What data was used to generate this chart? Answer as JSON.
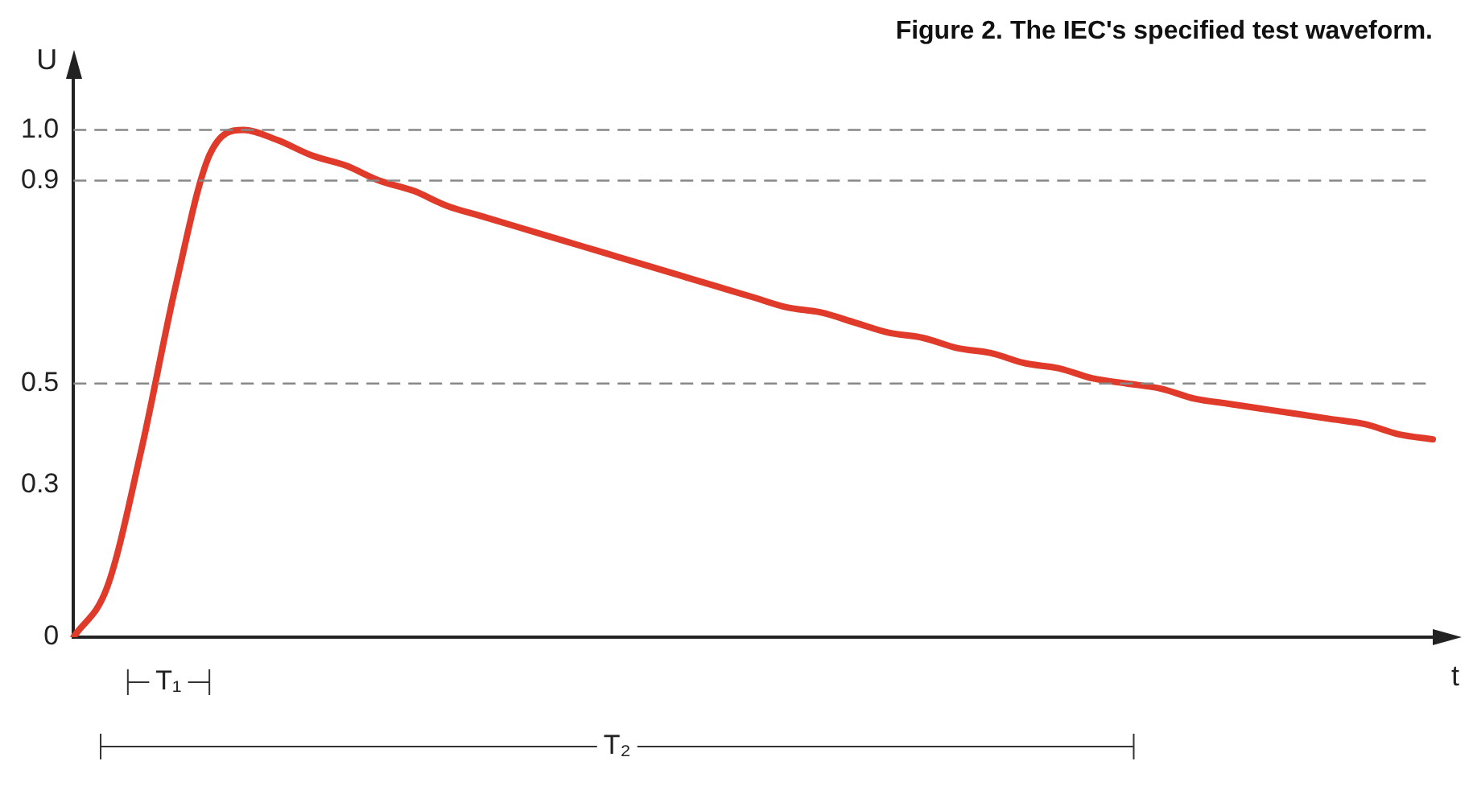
{
  "chart_data": {
    "type": "line",
    "title": "Figure 2. The IEC's specified test waveform.",
    "xlabel": "t",
    "ylabel": "U",
    "categories": [
      null,
      null,
      null,
      null,
      null,
      null,
      null,
      null,
      null,
      null,
      null,
      null,
      null,
      null,
      null,
      null,
      null,
      null,
      null,
      null,
      null,
      null,
      null,
      null,
      null,
      null,
      null,
      null,
      null,
      null,
      null,
      null,
      null,
      null,
      null,
      null,
      null,
      null,
      null,
      null,
      null
    ],
    "series": [
      {
        "color": "#e03a2a",
        "values": [
          0,
          0.1,
          0.37,
          0.69,
          0.95,
          1.0,
          0.98,
          0.95,
          0.93,
          0.9,
          0.88,
          0.85,
          0.83,
          0.81,
          0.79,
          0.77,
          0.75,
          0.73,
          0.71,
          0.69,
          0.67,
          0.65,
          0.64,
          0.62,
          0.6,
          0.59,
          0.57,
          0.56,
          0.54,
          0.53,
          0.51,
          0.5,
          0.49,
          0.47,
          0.46,
          0.45,
          0.44,
          0.43,
          0.42,
          0.4,
          0.39
        ]
      }
    ],
    "ylim": [
      0,
      1.1
    ],
    "yticks": [
      0,
      0.3,
      0.5,
      0.9,
      {
        "value": 1,
        "label": "1.0"
      }
    ],
    "ref_lines": [
      {
        "axis": "y",
        "value": 1,
        "color": "#888888",
        "line_style": "dashed"
      },
      {
        "axis": "y",
        "value": 0.9,
        "color": "#888888",
        "line_style": "dashed"
      },
      {
        "axis": "y",
        "value": 0.5,
        "color": "#888888",
        "line_style": "dashed"
      }
    ],
    "annotations": [
      "T₁",
      "T₂"
    ],
    "tick_labels": "y",
    "grid": false,
    "legend": false,
    "marker": "none",
    "line_style": "solid"
  }
}
